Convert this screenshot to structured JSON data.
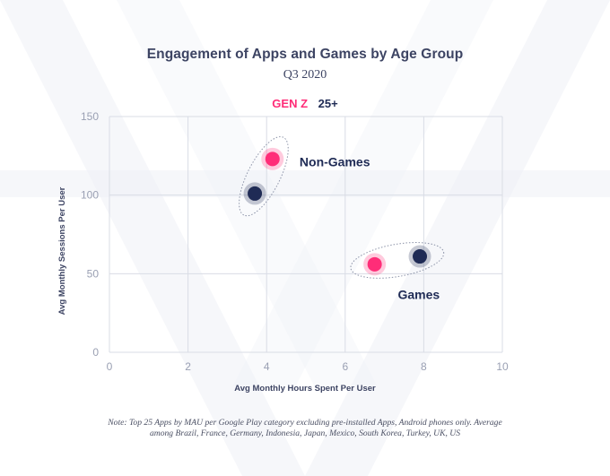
{
  "chart_data": {
    "type": "scatter",
    "title": "Engagement of Apps and Games by Age Group",
    "subtitle": "Q3 2020",
    "xlabel": "Avg Monthly Hours Spent Per User",
    "ylabel": "Avg Monthly Sessions Per User",
    "xlim": [
      0,
      10
    ],
    "ylim": [
      0,
      150
    ],
    "xticks": [
      0,
      2,
      4,
      6,
      8,
      10
    ],
    "yticks": [
      0,
      50,
      100,
      150
    ],
    "grid": true,
    "legend_position": "top-center",
    "series": [
      {
        "name": "GEN Z",
        "color": "#ff2d78",
        "points": [
          {
            "x": 4.15,
            "y": 123,
            "category": "Non-Games"
          },
          {
            "x": 6.75,
            "y": 56,
            "category": "Games"
          }
        ]
      },
      {
        "name": "25+",
        "color": "#1f2b55",
        "points": [
          {
            "x": 3.7,
            "y": 101,
            "category": "Non-Games"
          },
          {
            "x": 7.9,
            "y": 61,
            "category": "Games"
          }
        ]
      }
    ],
    "annotations": [
      "Non-Games",
      "Games"
    ],
    "note": "Note: Top 25 Apps by MAU per Google Play category excluding pre-installed Apps, Android phones only. Average among Brazil, France, Germany, Indonesia, Japan, Mexico, South Korea, Turkey, UK, US"
  }
}
